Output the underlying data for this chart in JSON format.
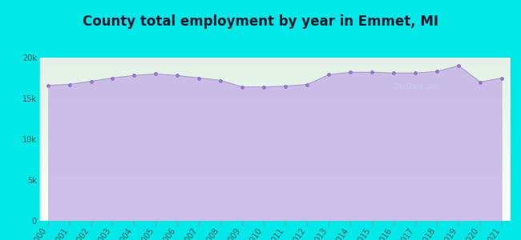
{
  "title": "County total employment by year in Emmet, MI",
  "years": [
    2000,
    2001,
    2002,
    2003,
    2004,
    2005,
    2006,
    2007,
    2008,
    2009,
    2010,
    2011,
    2012,
    2013,
    2014,
    2015,
    2016,
    2017,
    2018,
    2019,
    2020,
    2021
  ],
  "values": [
    16600,
    16700,
    17100,
    17500,
    17800,
    18000,
    17800,
    17500,
    17200,
    16400,
    16400,
    16500,
    16700,
    17900,
    18200,
    18200,
    18100,
    18100,
    18300,
    19000,
    17000,
    17500
  ],
  "ylim": [
    0,
    20000
  ],
  "yticks": [
    0,
    5000,
    10000,
    15000,
    20000
  ],
  "ytick_labels": [
    "0",
    "5k",
    "10k",
    "15k",
    "20k"
  ],
  "line_color": "#b39ddb",
  "fill_color": "#c5b3e6",
  "marker_color": "#9575cd",
  "marker_size": 3.5,
  "background_outer": "#00e8e8",
  "background_inner_top": "#f0faf0",
  "background_inner_bottom": "#f0faf0",
  "title_color": "#1a1a2e",
  "title_fontsize": 12,
  "tick_color": "#555555",
  "tick_fontsize": 7,
  "watermark": "CityData.com",
  "watermark_color": "#c8d8e8",
  "watermark_alpha": 0.6
}
